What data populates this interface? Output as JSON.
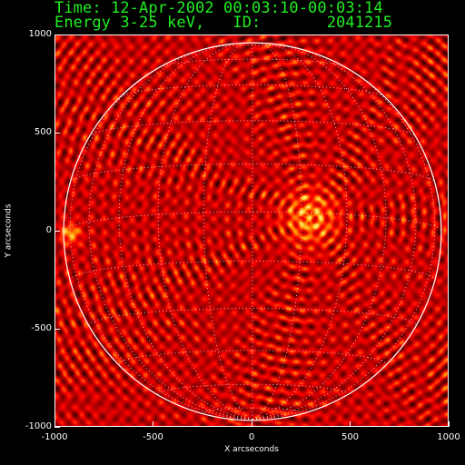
{
  "header": {
    "time_line": "Time: 12-Apr-2002 00:03:10-00:03:14",
    "energy_line": "Energy 3-25 keV,   ID:       2041215"
  },
  "image": {
    "colormap": "red-temperature",
    "solar_limb": true,
    "heliographic_grid": true
  },
  "chart_data": {
    "type": "heatmap",
    "xlabel": "X arcseconds",
    "ylabel": "Y arcseconds",
    "xlim": [
      -1000,
      1000
    ],
    "ylim": [
      -1000,
      1000
    ],
    "x_ticks": [
      "-1000",
      "-500",
      "0",
      "500",
      "1000"
    ],
    "y_ticks": [
      "1000",
      "500",
      "0",
      "-500",
      "-1000"
    ]
  }
}
